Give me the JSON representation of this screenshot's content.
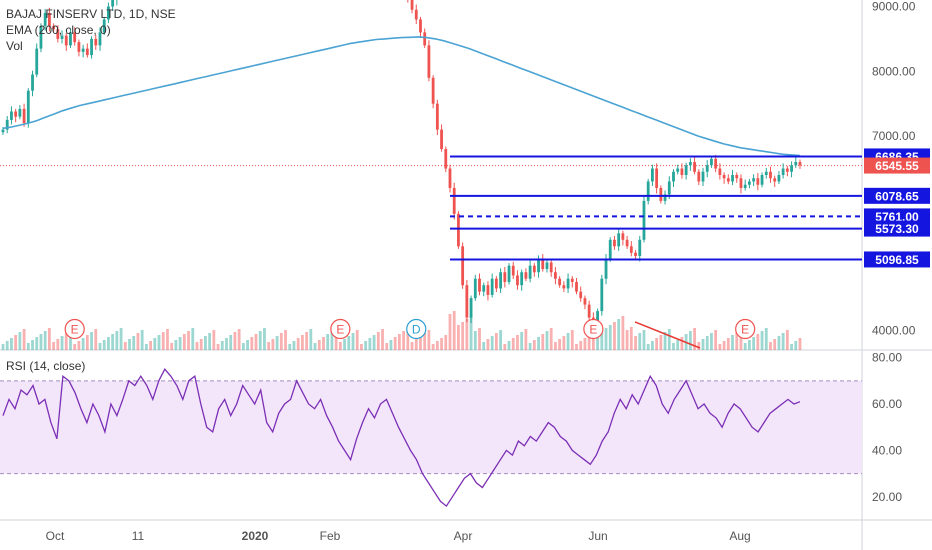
{
  "header": {
    "symbol_line": "BAJAJ FINSERV LTD, 1D, NSE",
    "ema_line": "EMA (200, close, 0)",
    "vol_line": "Vol"
  },
  "rsi_panel": {
    "label": "RSI (14, close)"
  },
  "colors": {
    "up": "#26a69a",
    "down": "#ef5350",
    "ema": "#4aa3d3",
    "level_line": "#1515e0",
    "rsi_line": "#7b2fb5",
    "rsi_band": "#f3e6fb",
    "last_price_bg": "#ef5350",
    "level_label_bg": "#1515e0",
    "divergence": "#e53935"
  },
  "chart_data": [
    {
      "type": "candlestick",
      "title": "BAJAJ FINSERV LTD, 1D, NSE",
      "x_ticks": [
        "Oct",
        "11",
        "2020",
        "Feb",
        "Apr",
        "Jun",
        "Aug"
      ],
      "y_ticks": [
        "9000.00",
        "8000.00",
        "7000.00",
        "4000.00"
      ],
      "ylim": [
        3700,
        9100
      ],
      "last_price": "6545.55",
      "horizontal_levels": [
        {
          "value": 6686.35,
          "label": "6686.35",
          "style": "solid"
        },
        {
          "value": 6078.65,
          "label": "6078.65",
          "style": "solid"
        },
        {
          "value": 5761.0,
          "label": "5761.00",
          "style": "dashed"
        },
        {
          "value": 5573.3,
          "label": "5573.30",
          "style": "solid"
        },
        {
          "value": 5096.85,
          "label": "5096.85",
          "style": "solid"
        }
      ],
      "event_markers": [
        {
          "symbol": "E",
          "x_index": 17
        },
        {
          "symbol": "E",
          "x_index": 80
        },
        {
          "symbol": "D",
          "x_index": 98
        },
        {
          "symbol": "E",
          "x_index": 140
        },
        {
          "symbol": "E",
          "x_index": 176
        }
      ],
      "closes": [
        7100,
        7250,
        7380,
        7300,
        7420,
        7200,
        7700,
        7950,
        8350,
        8700,
        8900,
        8700,
        8650,
        8500,
        8550,
        8400,
        8600,
        8450,
        8300,
        8350,
        8250,
        8500,
        8400,
        8600,
        8800,
        9000,
        9100,
        9300,
        9400,
        9200,
        9300,
        9500,
        9400,
        9600,
        9700,
        9550,
        9650,
        9800,
        9600,
        9500,
        9400,
        9550,
        9650,
        9500,
        9350,
        9450,
        9300,
        9200,
        9400,
        9600,
        9500,
        9400,
        9550,
        9650,
        9750,
        9600,
        9500,
        9650,
        9800,
        9700,
        9600,
        9750,
        9900,
        9800,
        9700,
        9850,
        9750,
        9650,
        9800,
        9950,
        9850,
        9700,
        9600,
        9750,
        9850,
        9700,
        9550,
        9650,
        9750,
        9600,
        9400,
        9500,
        9650,
        9700,
        9550,
        9450,
        9600,
        9700,
        9800,
        9650,
        9500,
        9400,
        9550,
        9450,
        9300,
        9200,
        9100,
        8950,
        8800,
        8600,
        8400,
        7900,
        7500,
        7100,
        6800,
        6500,
        6200,
        5800,
        5300,
        4700,
        4200,
        4500,
        4800,
        4600,
        4700,
        4550,
        4800,
        4650,
        4900,
        4750,
        5000,
        4850,
        4700,
        4900,
        4800,
        5000,
        4900,
        5100,
        4950,
        5050,
        4900,
        4800,
        4700,
        4650,
        4800,
        4750,
        4600,
        4500,
        4400,
        4200,
        4100,
        4300,
        4800,
        5100,
        5400,
        5300,
        5500,
        5400,
        5300,
        5200,
        5150,
        5400,
        6000,
        6300,
        6500,
        6200,
        6000,
        6100,
        6300,
        6450,
        6500,
        6400,
        6550,
        6600,
        6450,
        6300,
        6450,
        6550,
        6650,
        6500,
        6400,
        6350,
        6300,
        6400,
        6350,
        6200,
        6250,
        6300,
        6350,
        6250,
        6400,
        6450,
        6350,
        6300,
        6400,
        6500,
        6450,
        6550,
        6600,
        6550
      ],
      "ema_200": [
        7120,
        7140,
        7170,
        7200,
        7240,
        7290,
        7340,
        7390,
        7430,
        7470,
        7500,
        7530,
        7560,
        7590,
        7620,
        7650,
        7680,
        7710,
        7740,
        7770,
        7800,
        7830,
        7860,
        7890,
        7920,
        7950,
        7980,
        8010,
        8040,
        8070,
        8100,
        8130,
        8160,
        8190,
        8220,
        8250,
        8280,
        8310,
        8340,
        8370,
        8400,
        8430,
        8450,
        8470,
        8490,
        8500,
        8510,
        8520,
        8525,
        8530,
        8520,
        8500,
        8470,
        8430,
        8390,
        8350,
        8300,
        8250,
        8200,
        8150,
        8100,
        8050,
        8000,
        7950,
        7900,
        7850,
        7800,
        7750,
        7700,
        7650,
        7600,
        7550,
        7500,
        7450,
        7400,
        7350,
        7300,
        7250,
        7200,
        7150,
        7100,
        7050,
        7000,
        6960,
        6920,
        6880,
        6850,
        6820,
        6800,
        6780,
        6760,
        6740,
        6720,
        6710,
        6700
      ],
      "rsi": {
        "y_ticks": [
          "80.00",
          "60.00",
          "40.00",
          "20.00"
        ],
        "ylim": [
          10,
          82
        ],
        "band": [
          30,
          70
        ],
        "values": [
          55,
          62,
          58,
          66,
          64,
          68,
          60,
          62,
          52,
          45,
          72,
          70,
          65,
          58,
          52,
          60,
          55,
          48,
          60,
          55,
          62,
          70,
          68,
          72,
          68,
          62,
          70,
          75,
          72,
          68,
          62,
          70,
          72,
          60,
          50,
          48,
          58,
          62,
          55,
          60,
          68,
          64,
          60,
          66,
          52,
          48,
          56,
          60,
          62,
          70,
          65,
          60,
          58,
          62,
          55,
          50,
          44,
          40,
          36,
          45,
          52,
          58,
          54,
          60,
          62,
          56,
          50,
          45,
          40,
          36,
          30,
          26,
          22,
          18,
          16,
          20,
          24,
          28,
          30,
          26,
          24,
          28,
          32,
          36,
          40,
          38,
          44,
          42,
          46,
          44,
          48,
          52,
          50,
          46,
          44,
          40,
          38,
          36,
          34,
          38,
          44,
          48,
          56,
          62,
          58,
          64,
          60,
          66,
          72,
          68,
          60,
          56,
          62,
          66,
          70,
          64,
          58,
          60,
          56,
          54,
          50,
          56,
          60,
          58,
          54,
          50,
          48,
          52,
          56,
          58,
          60,
          62,
          60,
          61
        ]
      }
    }
  ]
}
